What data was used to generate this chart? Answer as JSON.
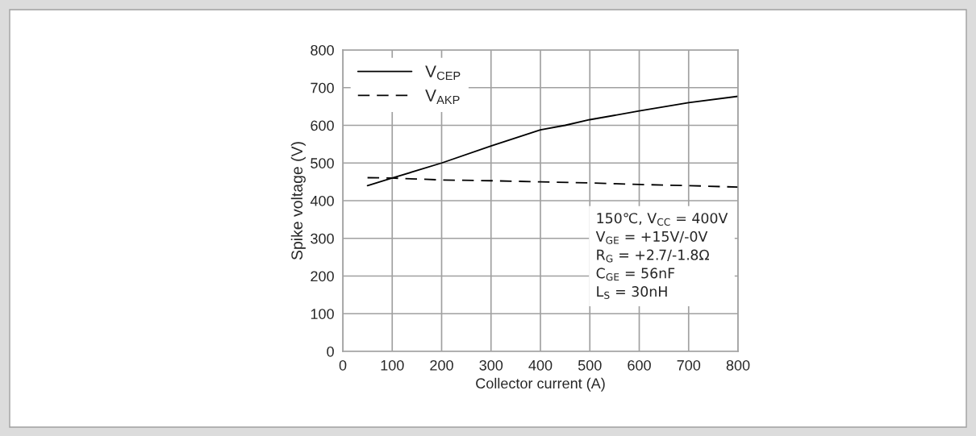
{
  "chart_data": {
    "type": "line",
    "xlabel": "Collector current (A)",
    "ylabel": "Spike voltage (V)",
    "xlim": [
      0,
      800
    ],
    "xticks": [
      0,
      100,
      200,
      300,
      400,
      500,
      600,
      700,
      800
    ],
    "ylim": [
      0,
      800
    ],
    "yticks": [
      0,
      100,
      200,
      300,
      400,
      500,
      600,
      700,
      800
    ],
    "grid": true,
    "legend": "top left",
    "series": [
      {
        "name": "V$_{CEP}$",
        "color": "#000000",
        "line_style": "solid",
        "x": [
          50,
          100,
          200,
          300,
          400,
          450,
          500,
          600,
          700,
          800
        ],
        "values": [
          440,
          460,
          500,
          545,
          588,
          600,
          615,
          638,
          660,
          677
        ]
      },
      {
        "name": "V$_{AKP}$",
        "color": "#000000",
        "line_style": "dashed",
        "x": [
          50,
          100,
          200,
          300,
          400,
          500,
          600,
          700,
          800
        ],
        "values": [
          461,
          460,
          455,
          453,
          450,
          447,
          443,
          440,
          436
        ]
      }
    ],
    "annotations": [
      "150℃, V$_{CC}$ = 400V",
      "V$_{GE}$ = +15V/-0V",
      "R$_{G}$ = +2.7/-1.8Ω",
      "C$_{GE}$ = 56nF",
      "L$_{S}$ = 30nH"
    ]
  }
}
